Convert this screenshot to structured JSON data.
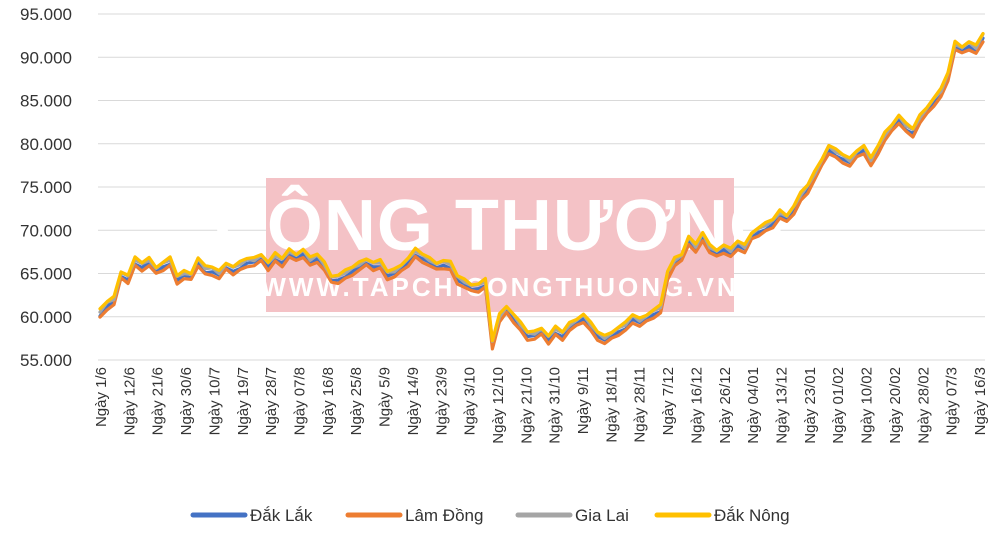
{
  "watermark": {
    "title": "CÔNG THƯƠNG",
    "url": "WWW.TAPCHICONGTHUONG.VN",
    "color": "#f4c2c6"
  },
  "chart_data": {
    "type": "line",
    "ylim": [
      55000,
      95000
    ],
    "y_ticks": [
      "55.000",
      "60.000",
      "65.000",
      "70.000",
      "75.000",
      "80.000",
      "85.000",
      "90.000",
      "95.000"
    ],
    "x_labels": [
      "Ngày 1/6",
      "Ngày 12/6",
      "Ngày 21/6",
      "Ngày 30/6",
      "Ngày 10/7",
      "Ngày 19/7",
      "Ngày 28/7",
      "Ngày 07/8",
      "Ngày 16/8",
      "Ngày 25/8",
      "Ngày 5/9",
      "Ngày 14/9",
      "Ngày 23/9",
      "Ngày 3/10",
      "Ngày 12/10",
      "Ngày 21/10",
      "Ngày 31/10",
      "Ngày 9/11",
      "Ngày 18/11",
      "Ngày 28/11",
      "Ngày 7/12",
      "Ngày 16/12",
      "Ngày 26/12",
      "Ngày 04/01",
      "Ngày 13/12",
      "Ngày 23/01",
      "Ngày 01/02",
      "Ngày 10/02",
      "Ngày 20/02",
      "Ngày 28/02",
      "Ngày 07/3",
      "Ngày 16/3"
    ],
    "grid": true,
    "legend_position": "bottom",
    "base_values": [
      60500,
      61500,
      62000,
      65000,
      64500,
      66500,
      66000,
      66500,
      65500,
      66000,
      66500,
      64500,
      65000,
      64800,
      66500,
      65500,
      65500,
      65000,
      66000,
      65500,
      66000,
      66500,
      66500,
      67000,
      66000,
      67000,
      66500,
      67500,
      67000,
      67500,
      66500,
      67000,
      66000,
      64500,
      64500,
      65000,
      65500,
      66000,
      66500,
      66000,
      66200,
      65000,
      65200,
      65800,
      66500,
      67500,
      67000,
      66500,
      66000,
      66200,
      66000,
      64500,
      64000,
      63500,
      63500,
      64000,
      57000,
      60000,
      61000,
      60000,
      59000,
      58000,
      58000,
      58500,
      57500,
      58500,
      58000,
      59000,
      59500,
      60000,
      59000,
      58000,
      57500,
      58000,
      58500,
      59000,
      60000,
      59500,
      60000,
      60500,
      61000,
      65000,
      66500,
      67000,
      69000,
      68000,
      69500,
      68000,
      67500,
      68000,
      67500,
      68500,
      68000,
      69500,
      70000,
      70500,
      71000,
      72000,
      71500,
      72500,
      74000,
      75000,
      76500,
      78000,
      79500,
      79000,
      78500,
      78000,
      79000,
      79500,
      78000,
      79500,
      81000,
      82000,
      83000,
      82000,
      81500,
      83000,
      84000,
      85000,
      86000,
      88000,
      91500,
      91000,
      91500,
      91000,
      92500
    ],
    "series": [
      {
        "name": "Đắk Lắk",
        "color": "#4472c4",
        "offset": -300
      },
      {
        "name": "Lâm Đồng",
        "color": "#ed7d31",
        "offset": -600
      },
      {
        "name": "Gia Lai",
        "color": "#a5a5a5",
        "offset": 100
      },
      {
        "name": "Đắk Nông",
        "color": "#ffc000",
        "offset": 300
      }
    ]
  }
}
